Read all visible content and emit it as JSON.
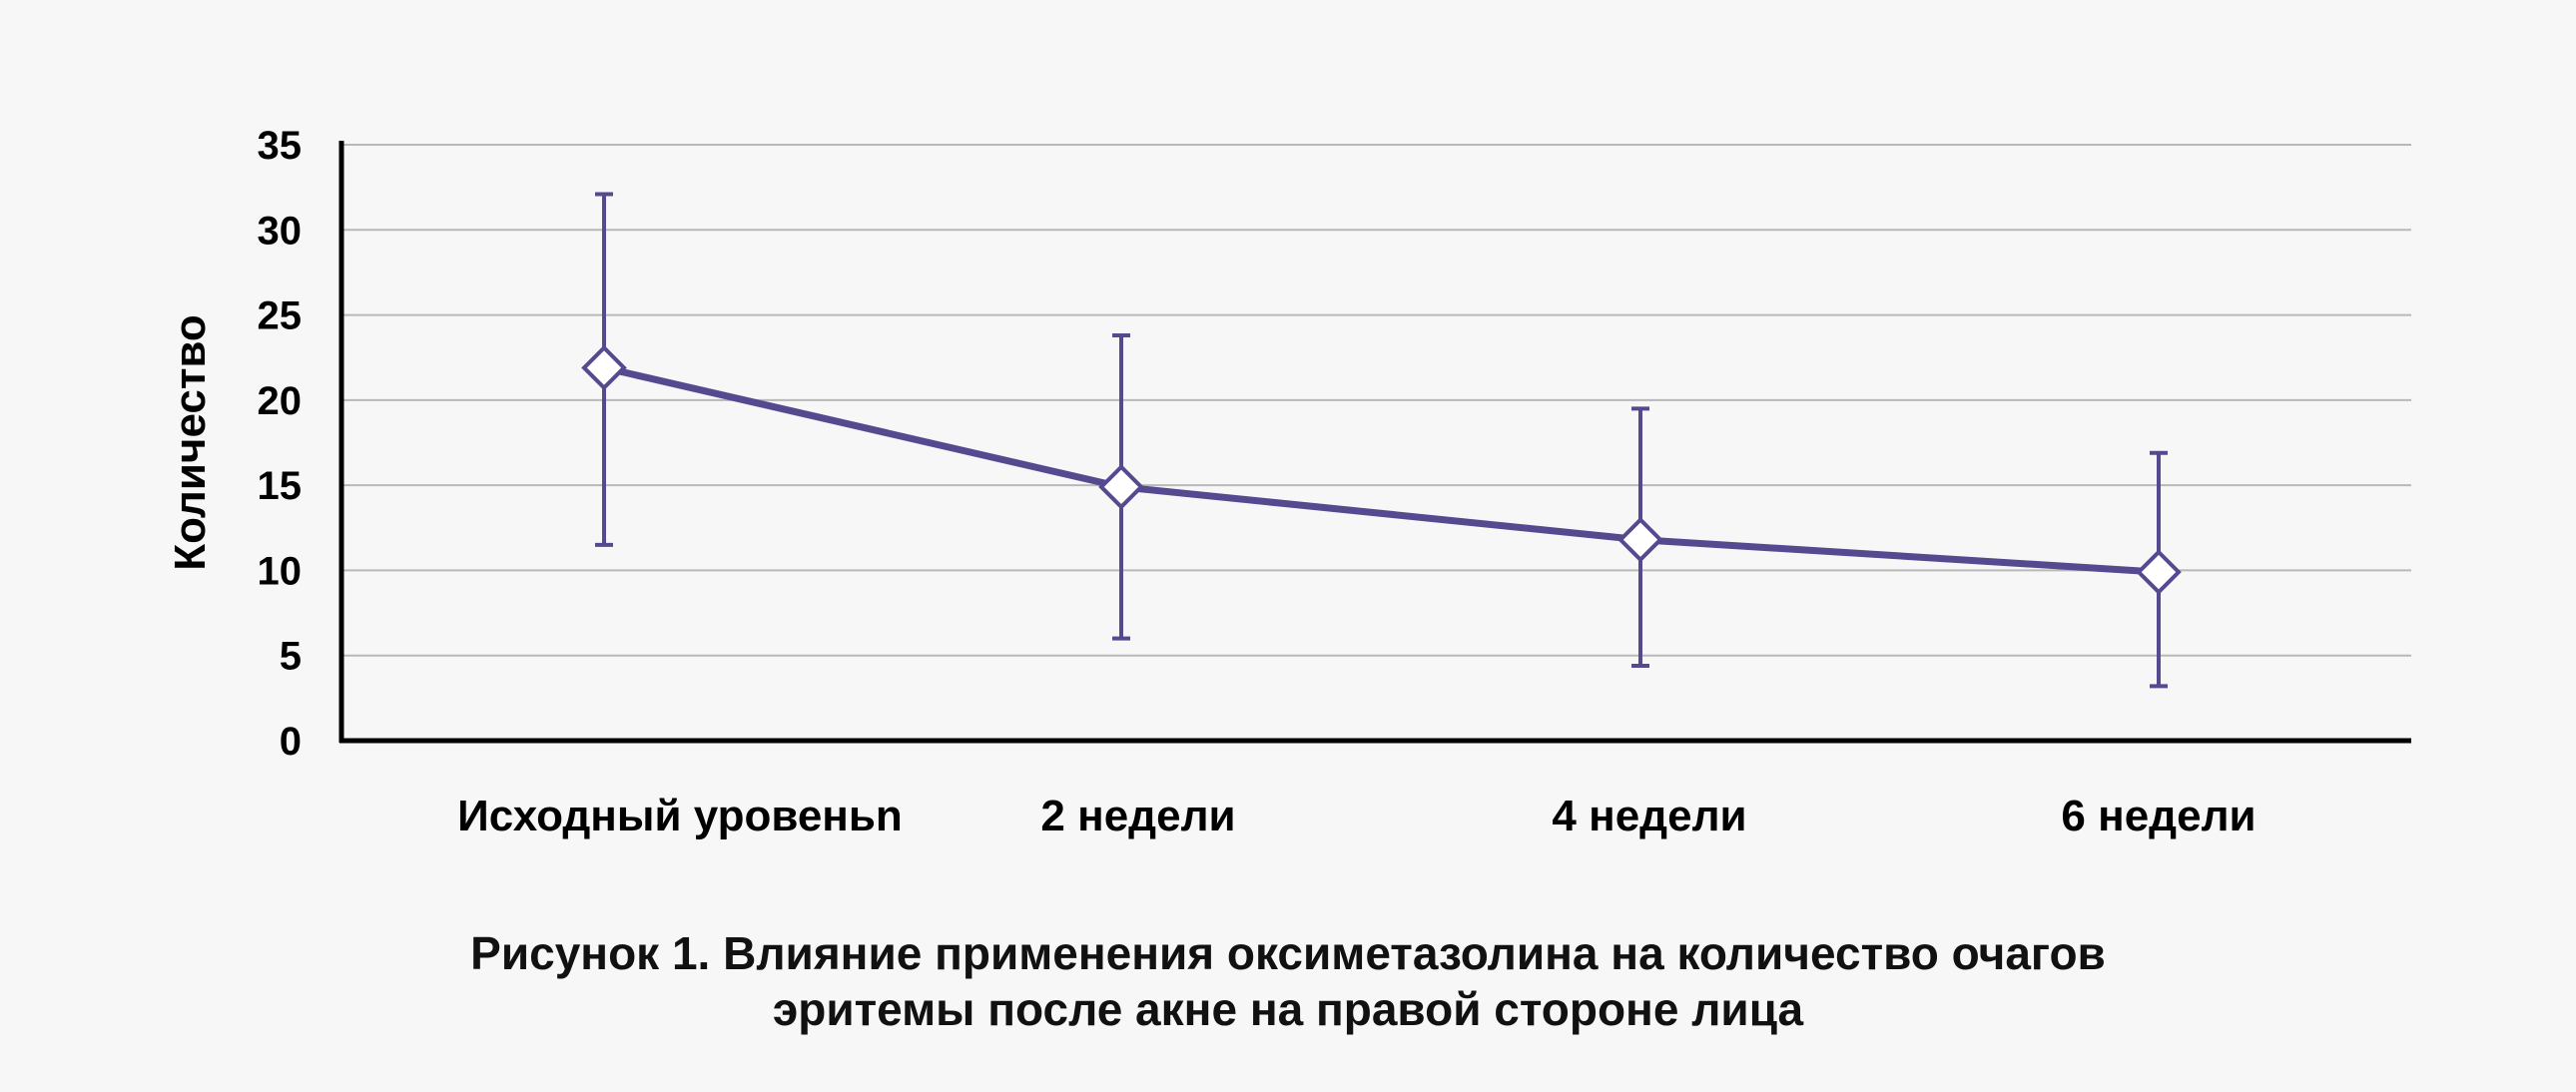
{
  "chart_data": {
    "type": "line",
    "title": "",
    "xlabel": "",
    "ylabel": "Количество",
    "ylim": [
      0,
      35
    ],
    "yticks": [
      "0",
      "5",
      "10",
      "15",
      "20",
      "25",
      "30",
      "35"
    ],
    "grid": true,
    "categories": [
      "Исходный уровеньn",
      "2 недели",
      "4 недели",
      "6 недели"
    ],
    "series": [
      {
        "values": [
          21.9,
          14.9,
          11.8,
          9.9
        ],
        "error_low": [
          11.5,
          6.0,
          4.4,
          3.2
        ],
        "error_high": [
          32.1,
          23.8,
          19.5,
          16.9
        ]
      }
    ],
    "colors": {
      "line": "#55498f",
      "grid": "#b8b8b8",
      "axis": "#000000",
      "marker_fill": "#ffffff"
    }
  },
  "caption": {
    "line1": "Рисунок 1. Влияние применения оксиметазолина на количество очагов",
    "line2": "эритемы после акне на правой стороне лица"
  }
}
